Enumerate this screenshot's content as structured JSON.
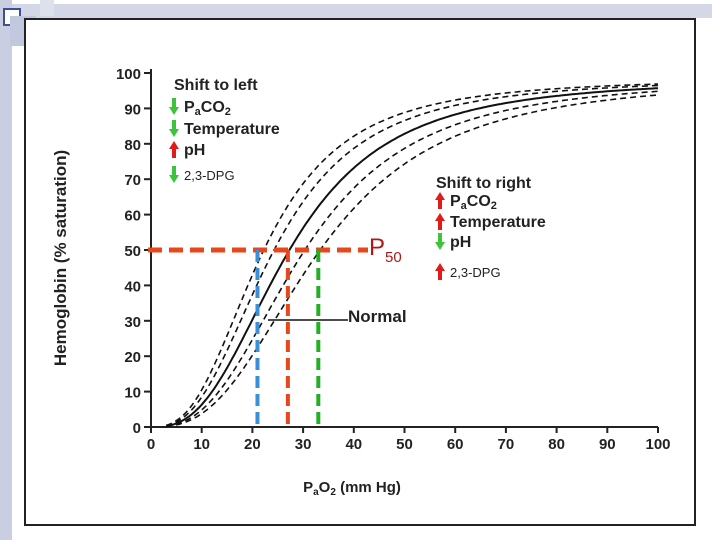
{
  "chart_data": {
    "type": "line",
    "xlabel": "PaO2 (mm Hg)",
    "ylabel": "Hemoglobin (% saturation)",
    "xlim": [
      0,
      100
    ],
    "ylim": [
      0,
      100
    ],
    "x_ticks": [
      "0",
      "10",
      "20",
      "30",
      "40",
      "50",
      "60",
      "70",
      "80",
      "90",
      "100"
    ],
    "y_ticks": [
      "0",
      "10",
      "20",
      "30",
      "40",
      "50",
      "60",
      "70",
      "80",
      "90",
      "100"
    ],
    "grid": false,
    "series": [
      {
        "name": "Normal",
        "style": "solid",
        "p50": 27,
        "n": 2.7
      },
      {
        "style": "dashed",
        "p50": 22,
        "n": 2.7
      },
      {
        "style": "dashed",
        "p50": 24,
        "n": 2.7
      },
      {
        "style": "dashed",
        "p50": 30,
        "n": 2.7
      },
      {
        "style": "dashed",
        "p50": 33,
        "n": 2.7
      }
    ],
    "p50_line": {
      "y": 50,
      "color": "#e8471c"
    },
    "markers": [
      {
        "x": 21,
        "color": "#3b8fd6"
      },
      {
        "x": 27,
        "color": "#e8471c"
      },
      {
        "x": 33,
        "color": "#22b022"
      }
    ],
    "annotations": {
      "p50_label": "P",
      "p50_sub": "50",
      "normal_label": "Normal",
      "left": {
        "title": "Shift to left",
        "items": [
          {
            "text": "PaCO2",
            "direction": "down",
            "color": "#3cc43c"
          },
          {
            "text": "Temperature",
            "direction": "down",
            "color": "#3cc43c"
          },
          {
            "text": "pH",
            "direction": "up",
            "color": "#e01b1b"
          },
          {
            "text": "2,3-DPG",
            "direction": "down",
            "color": "#3cc43c"
          }
        ]
      },
      "right": {
        "title": "Shift to right",
        "items": [
          {
            "text": "PaCO2",
            "direction": "up",
            "color": "#e01b1b"
          },
          {
            "text": "Temperature",
            "direction": "up",
            "color": "#e01b1b"
          },
          {
            "text": "pH",
            "direction": "down",
            "color": "#3cc43c"
          },
          {
            "text": "2,3-DPG",
            "direction": "up",
            "color": "#e01b1b"
          }
        ]
      }
    }
  }
}
